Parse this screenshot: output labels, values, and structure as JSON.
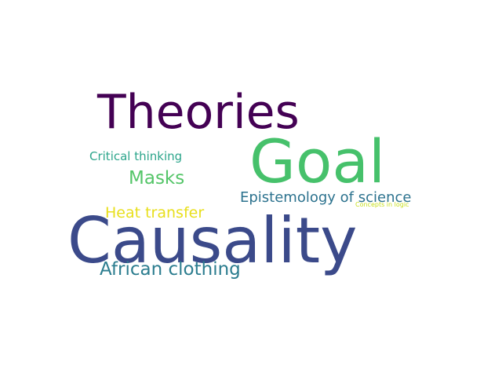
{
  "words": [
    {
      "id": "theories",
      "text": "Theories",
      "color": "#440154"
    },
    {
      "id": "goal",
      "text": "Goal",
      "color": "#46c16b"
    },
    {
      "id": "critical-thinking",
      "text": "Critical thinking",
      "color": "#2ca58b"
    },
    {
      "id": "masks",
      "text": "Masks",
      "color": "#54c568"
    },
    {
      "id": "epistemology",
      "text": "Epistemology of science",
      "color": "#2c728e"
    },
    {
      "id": "concepts-in-logic",
      "text": "Concepts in logic",
      "color": "#c8e020"
    },
    {
      "id": "heat-transfer",
      "text": "Heat transfer",
      "color": "#e8df1b"
    },
    {
      "id": "causality",
      "text": "Causality",
      "color": "#3b4a8a"
    },
    {
      "id": "african-clothing",
      "text": "African clothing",
      "color": "#2c7d8f"
    }
  ]
}
